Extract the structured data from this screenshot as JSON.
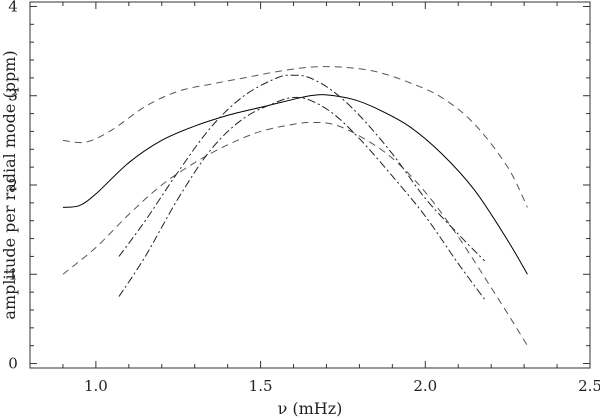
{
  "chart_data": {
    "type": "line",
    "xlabel": "ν   (mHz)",
    "ylabel": "amplitude per radial mode   (ppm)",
    "xlim": [
      0.8,
      2.5
    ],
    "ylim": [
      -0.05,
      4.05
    ],
    "xticks": [
      1.0,
      1.5,
      2.0,
      2.5
    ],
    "xtick_labels": [
      "1.0",
      "1.5",
      "2.0",
      "2.5"
    ],
    "yticks": [
      0,
      1,
      2,
      3,
      4
    ],
    "ytick_labels": [
      "0",
      "1",
      "2",
      "3",
      "4"
    ],
    "grid": false,
    "series": [
      {
        "style": "solid",
        "color": "#000000",
        "points": [
          [
            0.9,
            1.75
          ],
          [
            0.95,
            1.77
          ],
          [
            1.0,
            1.9
          ],
          [
            1.1,
            2.25
          ],
          [
            1.2,
            2.5
          ],
          [
            1.3,
            2.66
          ],
          [
            1.4,
            2.78
          ],
          [
            1.5,
            2.87
          ],
          [
            1.6,
            2.96
          ],
          [
            1.65,
            3.0
          ],
          [
            1.7,
            3.01
          ],
          [
            1.78,
            2.96
          ],
          [
            1.85,
            2.86
          ],
          [
            1.95,
            2.66
          ],
          [
            2.05,
            2.35
          ],
          [
            2.15,
            1.94
          ],
          [
            2.25,
            1.38
          ],
          [
            2.31,
            1.0
          ]
        ]
      },
      {
        "style": "dashed",
        "color": "#555555",
        "points": [
          [
            0.9,
            2.5
          ],
          [
            0.97,
            2.48
          ],
          [
            1.05,
            2.62
          ],
          [
            1.15,
            2.88
          ],
          [
            1.25,
            3.05
          ],
          [
            1.35,
            3.13
          ],
          [
            1.45,
            3.2
          ],
          [
            1.55,
            3.27
          ],
          [
            1.65,
            3.32
          ],
          [
            1.75,
            3.32
          ],
          [
            1.85,
            3.27
          ],
          [
            1.95,
            3.15
          ],
          [
            2.05,
            2.98
          ],
          [
            2.15,
            2.68
          ],
          [
            2.25,
            2.2
          ],
          [
            2.31,
            1.75
          ]
        ]
      },
      {
        "style": "dashed",
        "color": "#555555",
        "points": [
          [
            0.9,
            1.0
          ],
          [
            1.0,
            1.3
          ],
          [
            1.1,
            1.67
          ],
          [
            1.2,
            2.0
          ],
          [
            1.3,
            2.25
          ],
          [
            1.4,
            2.45
          ],
          [
            1.5,
            2.6
          ],
          [
            1.6,
            2.68
          ],
          [
            1.65,
            2.7
          ],
          [
            1.72,
            2.68
          ],
          [
            1.8,
            2.55
          ],
          [
            1.9,
            2.3
          ],
          [
            2.0,
            1.92
          ],
          [
            2.1,
            1.42
          ],
          [
            2.2,
            0.85
          ],
          [
            2.26,
            0.5
          ],
          [
            2.31,
            0.2
          ]
        ]
      },
      {
        "style": "dash-dot",
        "color": "#222222",
        "points": [
          [
            1.07,
            1.2
          ],
          [
            1.15,
            1.6
          ],
          [
            1.25,
            2.15
          ],
          [
            1.35,
            2.65
          ],
          [
            1.45,
            3.0
          ],
          [
            1.55,
            3.2
          ],
          [
            1.6,
            3.23
          ],
          [
            1.65,
            3.2
          ],
          [
            1.72,
            3.05
          ],
          [
            1.8,
            2.78
          ],
          [
            1.9,
            2.35
          ],
          [
            2.0,
            1.85
          ],
          [
            2.1,
            1.45
          ],
          [
            2.18,
            1.15
          ]
        ]
      },
      {
        "style": "dash-dot",
        "color": "#222222",
        "points": [
          [
            1.07,
            0.75
          ],
          [
            1.15,
            1.2
          ],
          [
            1.25,
            1.85
          ],
          [
            1.35,
            2.4
          ],
          [
            1.45,
            2.75
          ],
          [
            1.55,
            2.93
          ],
          [
            1.6,
            2.98
          ],
          [
            1.65,
            2.95
          ],
          [
            1.72,
            2.8
          ],
          [
            1.8,
            2.52
          ],
          [
            1.9,
            2.1
          ],
          [
            2.0,
            1.65
          ],
          [
            2.1,
            1.12
          ],
          [
            2.18,
            0.72
          ]
        ]
      }
    ]
  }
}
